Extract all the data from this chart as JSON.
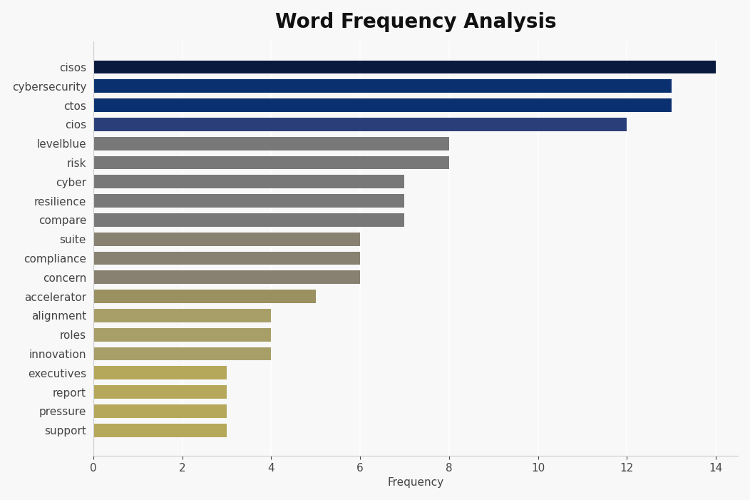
{
  "categories": [
    "cisos",
    "cybersecurity",
    "ctos",
    "cios",
    "levelblue",
    "risk",
    "cyber",
    "resilience",
    "compare",
    "suite",
    "compliance",
    "concern",
    "accelerator",
    "alignment",
    "roles",
    "innovation",
    "executives",
    "report",
    "pressure",
    "support"
  ],
  "values": [
    14,
    13,
    13,
    12,
    8,
    8,
    7,
    7,
    7,
    6,
    6,
    6,
    5,
    4,
    4,
    4,
    3,
    3,
    3,
    3
  ],
  "bar_colors": [
    "#091a3e",
    "#0a3070",
    "#0a3070",
    "#2a3f7a",
    "#787878",
    "#787878",
    "#787878",
    "#787878",
    "#787878",
    "#888070",
    "#888070",
    "#888070",
    "#9a9060",
    "#a89e68",
    "#a89e68",
    "#a89e68",
    "#b5a85a",
    "#b5a85a",
    "#b5a85a",
    "#b5a85a"
  ],
  "title": "Word Frequency Analysis",
  "xlabel": "Frequency",
  "ylabel": "",
  "xlim": [
    0,
    14.5
  ],
  "background_color": "#f8f8f8",
  "plot_bg_color": "#f8f8f8",
  "title_fontsize": 20,
  "label_fontsize": 11,
  "tick_fontsize": 11,
  "xticks": [
    0,
    2,
    4,
    6,
    8,
    10,
    12,
    14
  ],
  "bar_height": 0.7
}
